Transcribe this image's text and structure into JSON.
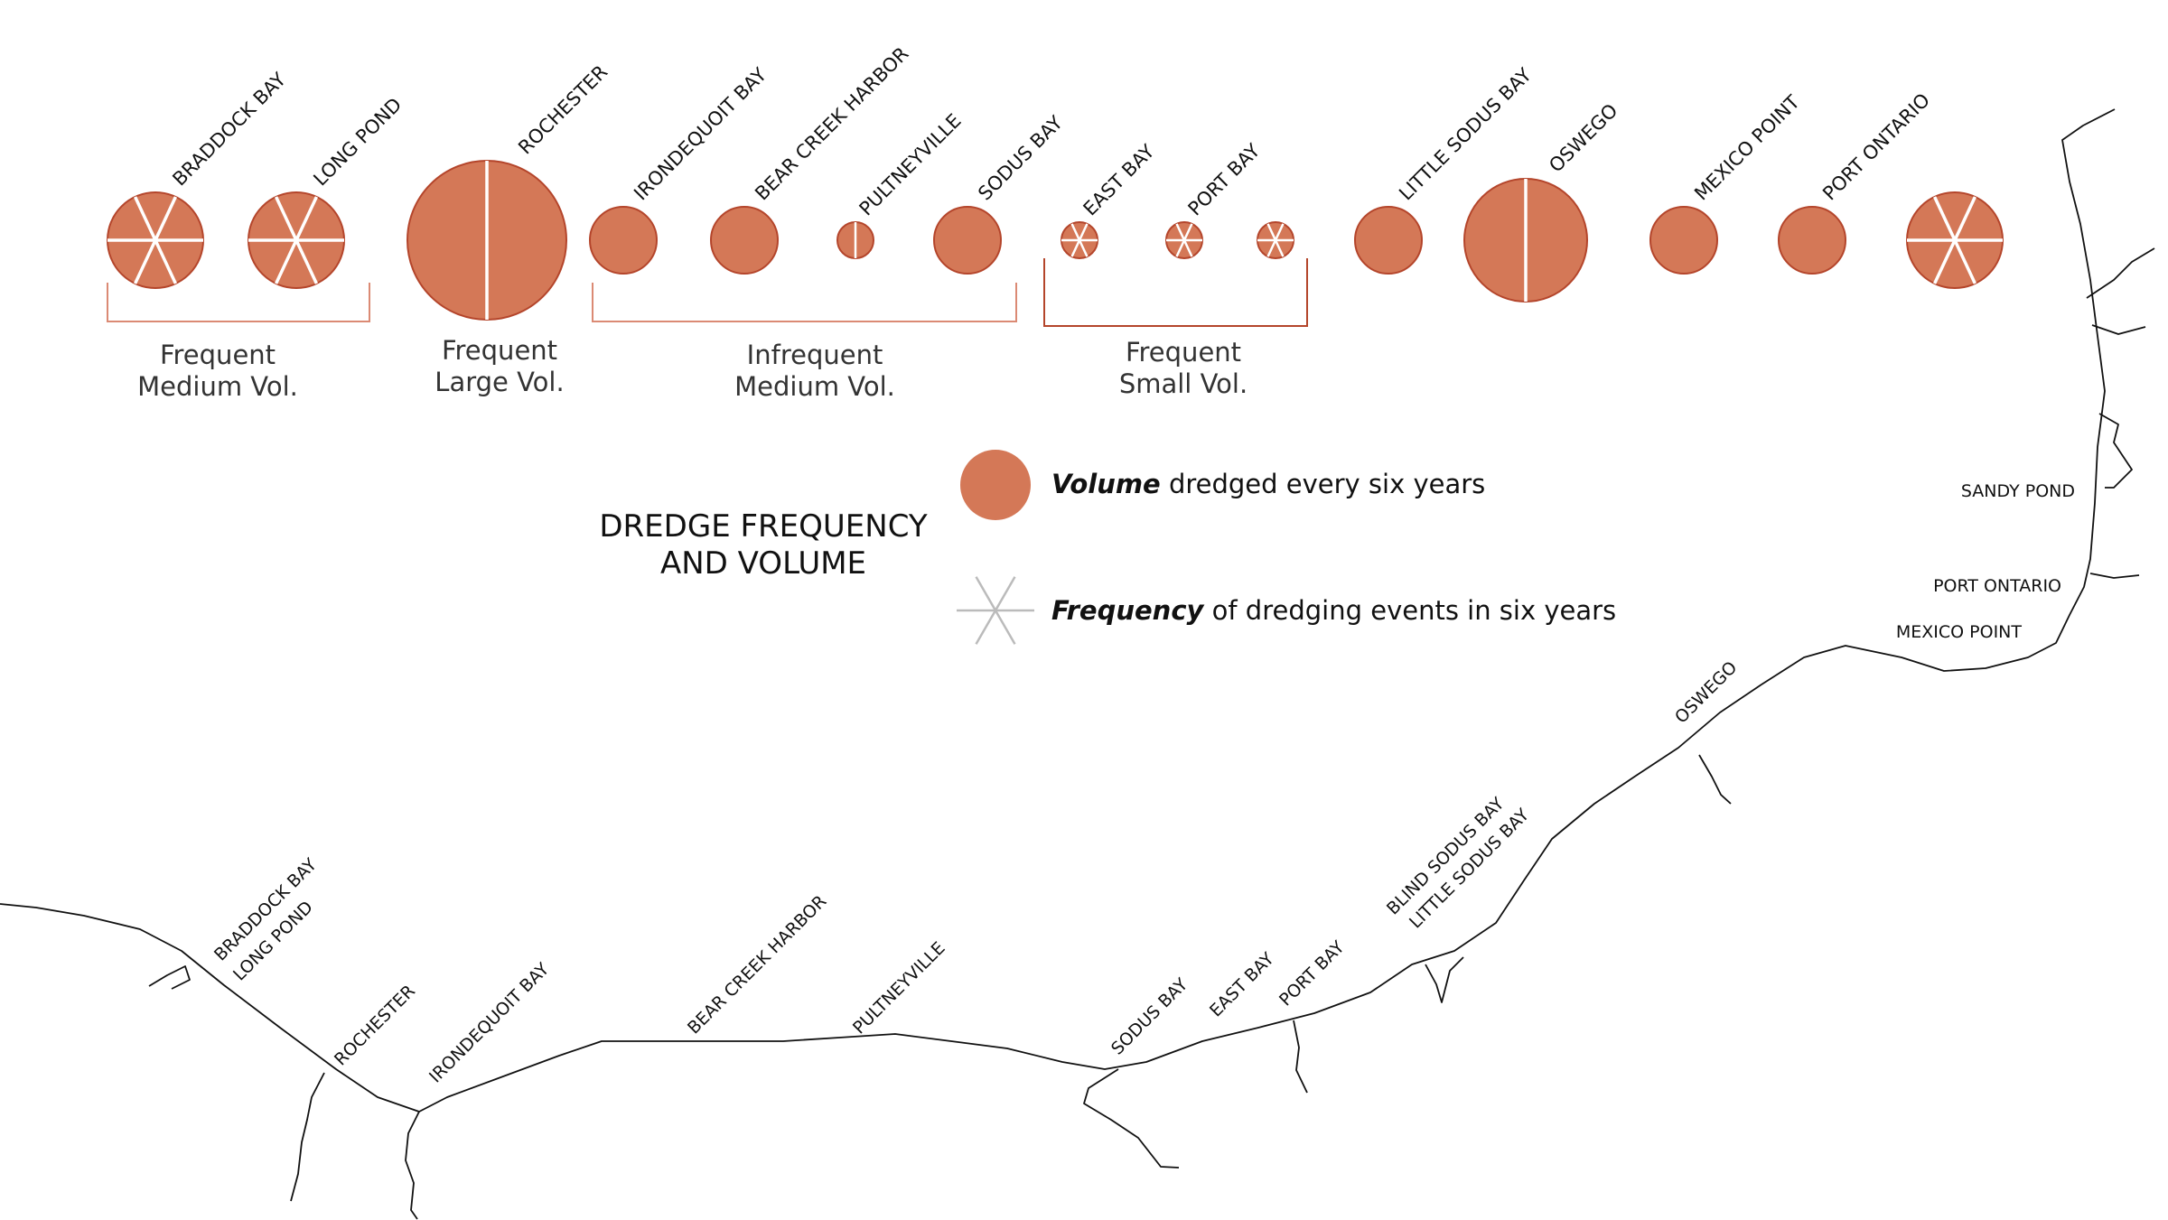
{
  "title": [
    "DREDGE FREQUENCY",
    "AND VOLUME"
  ],
  "colors": {
    "fill": "#D47857",
    "stroke": "#B4452B",
    "bracket_light": "#DB8A74",
    "bracket_dark": "#B4452B",
    "spoke": "#ffffff",
    "legend_spoke": "#bbbbbb"
  },
  "legend": {
    "volume_bold": "Volume",
    "volume_text": " dredged every six years",
    "frequency_bold": "Frequency",
    "frequency_text": " of dredging events in six years"
  },
  "chart_data": {
    "type": "bubble",
    "sites": [
      {
        "name": "BRADDOCK BAY",
        "volume": "medium",
        "spokes": 6
      },
      {
        "name": "LONG POND",
        "volume": "medium",
        "spokes": 6
      },
      {
        "name": "ROCHESTER",
        "volume": "large",
        "spokes": 2
      },
      {
        "name": "IRONDEQUOIT BAY",
        "volume": "medium",
        "spokes": 0
      },
      {
        "name": "BEAR CREEK HARBOR",
        "volume": "medium",
        "spokes": 0
      },
      {
        "name": "PULTNEYVILLE",
        "volume": "small",
        "spokes": 2
      },
      {
        "name": "SODUS BAY",
        "volume": "medium",
        "spokes": 0
      },
      {
        "name": "EAST BAY",
        "volume": "small",
        "spokes": 6
      },
      {
        "name": "PORT BAY",
        "volume": "small",
        "spokes": 6
      },
      {
        "name": "",
        "volume": "small",
        "spokes": 6
      },
      {
        "name": "LITTLE SODUS BAY",
        "volume": "medium",
        "spokes": 0
      },
      {
        "name": "OSWEGO",
        "volume": "xlarge",
        "spokes": 2
      },
      {
        "name": "MEXICO POINT",
        "volume": "medium",
        "spokes": 0
      },
      {
        "name": "PORT ONTARIO",
        "volume": "medium",
        "spokes": 0
      },
      {
        "name": "",
        "volume": "mediumlarge",
        "spokes": 6
      }
    ],
    "groups": [
      {
        "line1": "Frequent",
        "line2": "Medium Vol."
      },
      {
        "line1": "Frequent",
        "line2": "Large Vol."
      },
      {
        "line1": "Infrequent",
        "line2": "Medium Vol."
      },
      {
        "line1": "Frequent",
        "line2": "Small Vol."
      }
    ]
  },
  "map_labels": {
    "braddock_bay": "BRADDOCK BAY",
    "long_pond": "LONG POND",
    "rochester": "ROCHESTER",
    "irondequoit_bay": "IRONDEQUOIT BAY",
    "bear_creek_harbor": "BEAR CREEK HARBOR",
    "pultneyville": "PULTNEYVILLE",
    "sodus_bay": "SODUS BAY",
    "east_bay": "EAST BAY",
    "port_bay": "PORT BAY",
    "blind_sodus_bay": "BLIND SODUS BAY",
    "little_sodus_bay": "LITTLE SODUS BAY",
    "oswego": "OSWEGO",
    "sandy_pond": "SANDY POND",
    "port_ontario": "PORT ONTARIO",
    "mexico_point": "MEXICO POINT"
  }
}
